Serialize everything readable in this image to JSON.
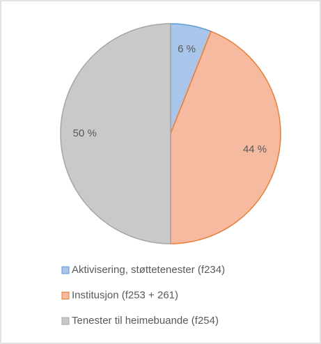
{
  "chart_data": {
    "type": "pie",
    "categories": [
      "Aktivisering, støttetenester (f234)",
      "Institusjon (f253 + 261)",
      "Tenester til heimebuande (f254)"
    ],
    "values": [
      6,
      44,
      50
    ],
    "value_labels": [
      "6 %",
      "44 %",
      "50 %"
    ],
    "colors": [
      "#a9c6ea",
      "#f6baa1",
      "#c9c9c9"
    ],
    "edge_colors": [
      "#5b9bd5",
      "#ed7d31",
      "#a5a5a5"
    ]
  }
}
